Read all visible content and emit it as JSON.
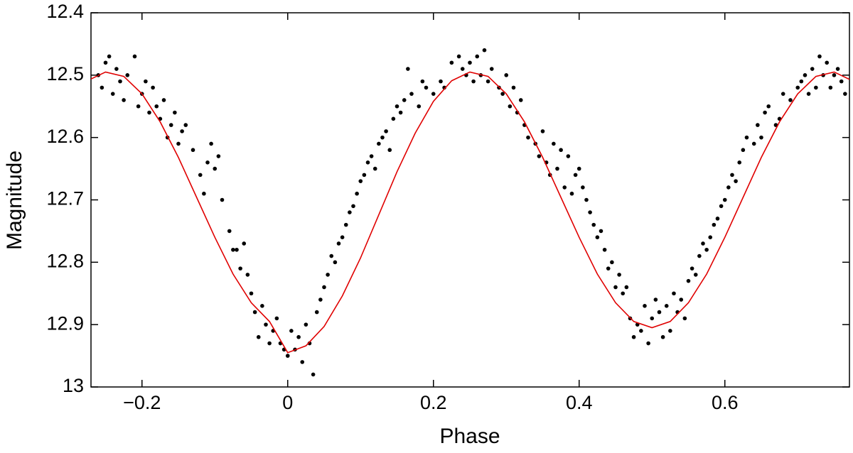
{
  "chart_data": {
    "type": "scatter",
    "x_label": "Phase",
    "y_label": "Magnitude",
    "xlim": [
      -0.27,
      0.771
    ],
    "ylim": [
      12.4,
      13
    ],
    "y_inverted": true,
    "xticks": [
      {
        "value": -0.2,
        "label": "−0.2"
      },
      0,
      0.2,
      0.4,
      0.6
    ],
    "yticks": [
      12.4,
      12.5,
      12.6,
      12.7,
      12.8,
      12.9,
      13
    ],
    "series": [
      {
        "type": "scatter",
        "color": "#000000",
        "x": [
          -0.26,
          -0.255,
          -0.25,
          -0.245,
          -0.24,
          -0.235,
          -0.23,
          -0.225,
          -0.22,
          -0.21,
          -0.205,
          -0.2,
          -0.195,
          -0.19,
          -0.185,
          -0.18,
          -0.175,
          -0.17,
          -0.165,
          -0.16,
          -0.155,
          -0.15,
          -0.145,
          -0.14,
          -0.13,
          -0.12,
          -0.115,
          -0.11,
          -0.105,
          -0.1,
          -0.095,
          -0.09,
          -0.08,
          -0.075,
          -0.07,
          -0.065,
          -0.06,
          -0.055,
          -0.05,
          -0.045,
          -0.04,
          -0.035,
          -0.03,
          -0.025,
          -0.02,
          -0.015,
          -0.01,
          -0.005,
          0,
          0.005,
          0.01,
          0.015,
          0.02,
          0.025,
          0.03,
          0.035,
          0.04,
          0.045,
          0.05,
          0.055,
          0.06,
          0.065,
          0.07,
          0.075,
          0.08,
          0.085,
          0.09,
          0.095,
          0.1,
          0.105,
          0.11,
          0.115,
          0.12,
          0.125,
          0.13,
          0.135,
          0.14,
          0.145,
          0.15,
          0.155,
          0.16,
          0.165,
          0.17,
          0.18,
          0.185,
          0.19,
          0.2,
          0.21,
          0.215,
          0.225,
          0.235,
          0.24,
          0.245,
          0.25,
          0.255,
          0.26,
          0.265,
          0.27,
          0.275,
          0.28,
          0.29,
          0.295,
          0.3,
          0.305,
          0.31,
          0.315,
          0.32,
          0.325,
          0.33,
          0.34,
          0.345,
          0.35,
          0.355,
          0.36,
          0.365,
          0.37,
          0.375,
          0.38,
          0.385,
          0.39,
          0.395,
          0.4,
          0.405,
          0.41,
          0.415,
          0.42,
          0.425,
          0.43,
          0.435,
          0.44,
          0.445,
          0.45,
          0.455,
          0.46,
          0.465,
          0.47,
          0.475,
          0.48,
          0.485,
          0.49,
          0.495,
          0.5,
          0.505,
          0.51,
          0.515,
          0.52,
          0.525,
          0.53,
          0.535,
          0.54,
          0.545,
          0.55,
          0.555,
          0.56,
          0.565,
          0.57,
          0.575,
          0.58,
          0.585,
          0.59,
          0.595,
          0.6,
          0.605,
          0.61,
          0.615,
          0.62,
          0.625,
          0.63,
          0.64,
          0.645,
          0.65,
          0.655,
          0.66,
          0.67,
          0.675,
          0.68,
          0.69,
          0.7,
          0.705,
          0.71,
          0.715,
          0.72,
          0.725,
          0.73,
          0.735,
          0.74,
          0.745,
          0.75,
          0.755,
          0.76,
          0.765
        ],
        "values": [
          12.5,
          12.52,
          12.48,
          12.47,
          12.53,
          12.49,
          12.51,
          12.54,
          12.5,
          12.47,
          12.55,
          12.53,
          12.51,
          12.56,
          12.52,
          12.55,
          12.57,
          12.54,
          12.6,
          12.58,
          12.56,
          12.61,
          12.59,
          12.58,
          12.62,
          12.66,
          12.69,
          12.64,
          12.61,
          12.65,
          12.63,
          12.7,
          12.75,
          12.78,
          12.78,
          12.81,
          12.77,
          12.82,
          12.85,
          12.88,
          12.92,
          12.87,
          12.9,
          12.93,
          12.91,
          12.89,
          12.93,
          12.94,
          12.95,
          12.91,
          12.94,
          12.92,
          12.96,
          12.9,
          12.93,
          12.98,
          12.88,
          12.86,
          12.84,
          12.82,
          12.79,
          12.8,
          12.77,
          12.76,
          12.74,
          12.72,
          12.71,
          12.69,
          12.67,
          12.66,
          12.64,
          12.63,
          12.65,
          12.61,
          12.6,
          12.59,
          12.62,
          12.57,
          12.55,
          12.56,
          12.54,
          12.49,
          12.53,
          12.55,
          12.51,
          12.52,
          12.53,
          12.51,
          12.52,
          12.48,
          12.47,
          12.49,
          12.5,
          12.48,
          12.51,
          12.47,
          12.5,
          12.46,
          12.51,
          12.49,
          12.52,
          12.53,
          12.5,
          12.55,
          12.52,
          12.56,
          12.54,
          12.58,
          12.6,
          12.61,
          12.63,
          12.59,
          12.64,
          12.66,
          12.61,
          12.65,
          12.62,
          12.68,
          12.63,
          12.69,
          12.66,
          12.65,
          12.68,
          12.7,
          12.72,
          12.74,
          12.76,
          12.75,
          12.78,
          12.81,
          12.8,
          12.84,
          12.82,
          12.85,
          12.84,
          12.89,
          12.92,
          12.9,
          12.91,
          12.87,
          12.93,
          12.89,
          12.86,
          12.88,
          12.92,
          12.87,
          12.91,
          12.85,
          12.88,
          12.86,
          12.89,
          12.83,
          12.81,
          12.82,
          12.79,
          12.77,
          12.78,
          12.76,
          12.74,
          12.73,
          12.71,
          12.7,
          12.68,
          12.66,
          12.67,
          12.64,
          12.62,
          12.6,
          12.61,
          12.58,
          12.6,
          12.56,
          12.55,
          12.58,
          12.57,
          12.53,
          12.54,
          12.52,
          12.51,
          12.5,
          12.53,
          12.49,
          12.52,
          12.47,
          12.5,
          12.48,
          12.52,
          12.5,
          12.49,
          12.51,
          12.53
        ]
      },
      {
        "type": "line",
        "color": "#e00000",
        "x": [
          -0.275,
          -0.25,
          -0.225,
          -0.2,
          -0.175,
          -0.15,
          -0.125,
          -0.1,
          -0.075,
          -0.05,
          -0.025,
          0,
          0.025,
          0.05,
          0.075,
          0.1,
          0.125,
          0.15,
          0.175,
          0.2,
          0.225,
          0.25,
          0.275,
          0.3,
          0.325,
          0.35,
          0.375,
          0.4,
          0.425,
          0.45,
          0.475,
          0.5,
          0.525,
          0.55,
          0.575,
          0.6,
          0.625,
          0.65,
          0.675,
          0.7,
          0.725,
          0.75,
          0.775
        ],
        "values": [
          12.509,
          12.495,
          12.502,
          12.53,
          12.575,
          12.632,
          12.696,
          12.76,
          12.819,
          12.865,
          12.895,
          12.945,
          12.934,
          12.903,
          12.854,
          12.793,
          12.724,
          12.655,
          12.593,
          12.542,
          12.509,
          12.495,
          12.502,
          12.53,
          12.575,
          12.632,
          12.696,
          12.76,
          12.819,
          12.865,
          12.895,
          12.905,
          12.895,
          12.865,
          12.819,
          12.76,
          12.696,
          12.632,
          12.575,
          12.53,
          12.502,
          12.495,
          12.509
        ]
      }
    ]
  }
}
